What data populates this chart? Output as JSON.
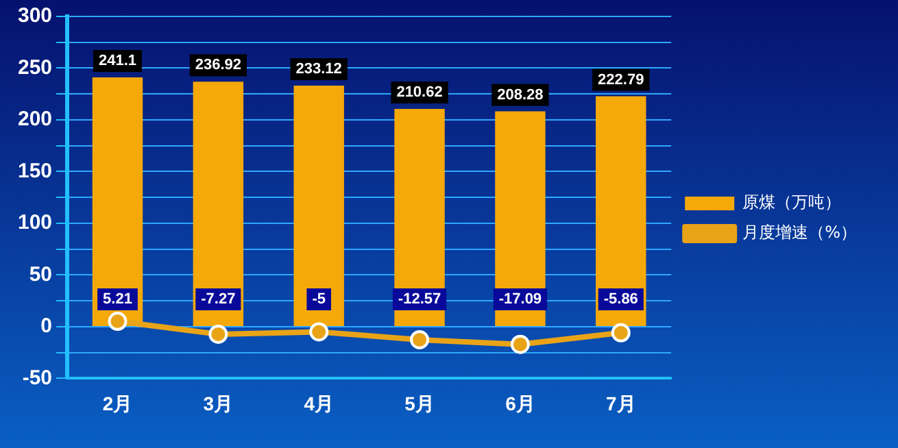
{
  "chart_data": {
    "type": "bar",
    "categories": [
      "2月",
      "3月",
      "4月",
      "5月",
      "6月",
      "7月"
    ],
    "series": [
      {
        "name": "原煤（万吨）",
        "color": "#f5a80a",
        "values": [
          241.1,
          236.92,
          233.12,
          210.62,
          208.28,
          222.79
        ]
      },
      {
        "name": "月度增速（%）",
        "type": "line",
        "color": "#e8a317",
        "values": [
          5.21,
          -7.27,
          -5,
          -12.57,
          -17.09,
          -5.86
        ]
      }
    ],
    "ylim": [
      -50,
      300
    ],
    "yticks": [
      -50,
      {
        "value": -25,
        "label": null
      },
      0,
      {
        "value": 25,
        "label": null
      },
      50,
      {
        "value": 75,
        "label": null
      },
      100,
      {
        "value": 125,
        "label": null
      },
      150,
      {
        "value": 175,
        "label": null
      },
      200,
      {
        "value": 225,
        "label": null
      },
      250,
      {
        "value": 275,
        "label": null
      },
      300
    ],
    "grid": "y",
    "legend": "right",
    "marker": "circle",
    "data_labels": true
  }
}
